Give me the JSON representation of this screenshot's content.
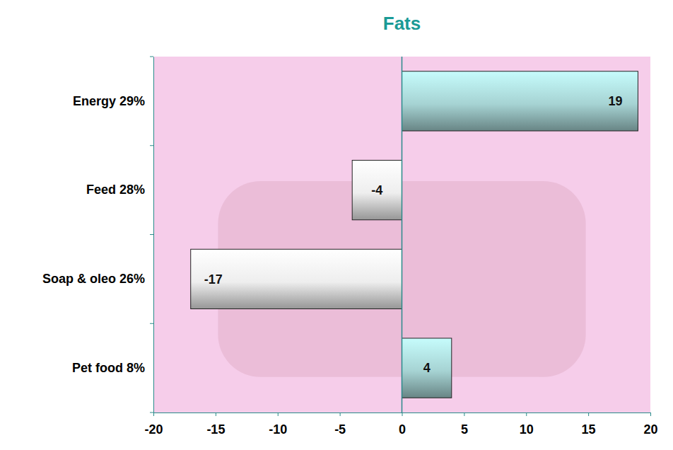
{
  "chart_data": {
    "type": "bar",
    "title": "Fats",
    "orientation": "horizontal",
    "categories": [
      "Energy 29%",
      "Feed 28%",
      "Soap & oleo 26%",
      "Pet food 8%"
    ],
    "values": [
      19,
      -4,
      -17,
      4
    ],
    "colors": [
      "#a6d3d3",
      "#eeeeee",
      "#eeeeee",
      "#a6d3d3"
    ],
    "xlim": [
      -20,
      20
    ],
    "xticks": [
      -20,
      -15,
      -10,
      -5,
      0,
      5,
      10,
      15,
      20
    ],
    "data_labels": true,
    "grid": false
  }
}
